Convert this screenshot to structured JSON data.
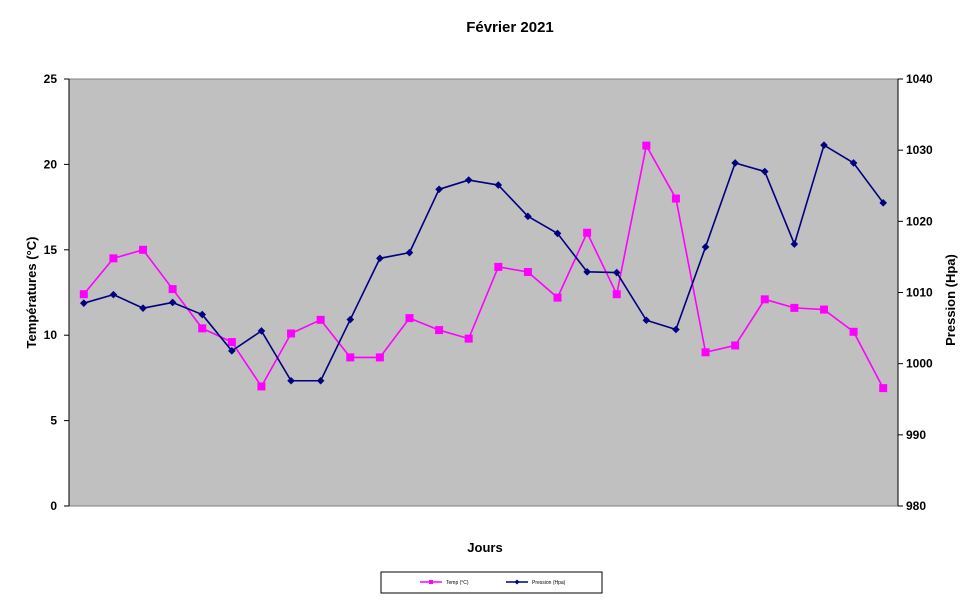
{
  "chart_data": {
    "type": "line",
    "title": "Février 2021",
    "xlabel": "Jours",
    "ylabel_left": "Températures (°C)",
    "ylabel_right": "Pression (Hpa)",
    "y_left_range": [
      0,
      25
    ],
    "y_left_ticks": [
      "0",
      "5",
      "10",
      "15",
      "20",
      "25"
    ],
    "y_right_range": [
      980,
      1040
    ],
    "y_right_ticks": [
      "980",
      "990",
      "1000",
      "1010",
      "1020",
      "1030",
      "1040"
    ],
    "x": [
      1,
      2,
      3,
      4,
      5,
      6,
      7,
      8,
      9,
      10,
      11,
      12,
      13,
      14,
      15,
      16,
      17,
      18,
      19,
      20,
      21,
      22,
      23,
      24,
      25,
      26,
      27,
      28
    ],
    "grid": false,
    "legend_position": "bottom",
    "plot_background": "#c0c0c0",
    "series": [
      {
        "name": "Temp (°C)",
        "axis": "left",
        "color": "#ff00ff",
        "marker": "square",
        "values": [
          12.4,
          14.5,
          15.0,
          12.7,
          10.4,
          9.6,
          7.0,
          10.1,
          10.9,
          8.7,
          8.7,
          11.0,
          10.3,
          9.8,
          14.0,
          13.7,
          12.2,
          16.0,
          12.4,
          21.1,
          18.0,
          9.0,
          9.4,
          12.1,
          11.6,
          11.5,
          10.2,
          6.9
        ]
      },
      {
        "name": "Pression (Hpa)",
        "axis": "right",
        "color": "#000080",
        "marker": "diamond",
        "values": [
          1008.5,
          1009.7,
          1007.8,
          1008.6,
          1006.9,
          1001.8,
          1004.6,
          997.6,
          997.6,
          1006.2,
          1014.8,
          1015.6,
          1024.5,
          1025.8,
          1025.1,
          1020.7,
          1018.3,
          1012.9,
          1012.8,
          1006.1,
          1004.8,
          1016.4,
          1028.2,
          1027.0,
          1016.8,
          1030.7,
          1028.2,
          1022.6
        ]
      }
    ]
  }
}
